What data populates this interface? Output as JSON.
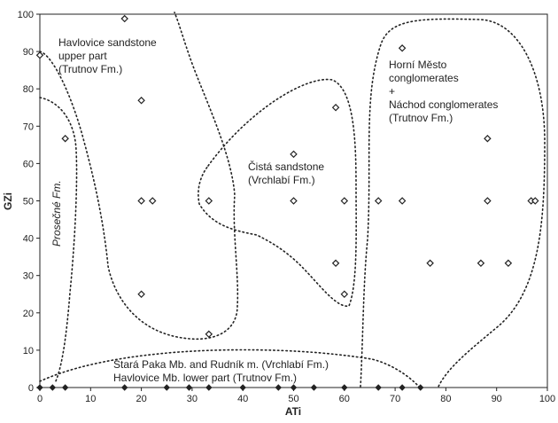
{
  "chart_data": {
    "type": "scatter",
    "xlabel": "ATi",
    "ylabel": "GZi",
    "xlim": [
      0,
      100
    ],
    "ylim": [
      0,
      100
    ],
    "xticks": [
      "0",
      "10",
      "20",
      "30",
      "40",
      "50",
      "60",
      "70",
      "80",
      "90",
      "100"
    ],
    "yticks": [
      "0",
      "10",
      "20",
      "30",
      "40",
      "50",
      "60",
      "70",
      "80",
      "90",
      "100"
    ],
    "grid": false,
    "points_open": [
      [
        0,
        89
      ],
      [
        16.7,
        98.8
      ],
      [
        5,
        66.7
      ],
      [
        20,
        76.9
      ],
      [
        20,
        50
      ],
      [
        22.2,
        50
      ],
      [
        20,
        25
      ],
      [
        33.3,
        50
      ],
      [
        33.3,
        14.3
      ],
      [
        50,
        62.5
      ],
      [
        50,
        50
      ],
      [
        58.3,
        75
      ],
      [
        60,
        50
      ],
      [
        58.3,
        33.3
      ],
      [
        60,
        25
      ],
      [
        66.7,
        50
      ],
      [
        71.4,
        90.9
      ],
      [
        71.4,
        50
      ],
      [
        88.2,
        66.7
      ],
      [
        88.2,
        50
      ],
      [
        96.8,
        50
      ],
      [
        97.6,
        50
      ],
      [
        76.9,
        33.3
      ],
      [
        86.9,
        33.3
      ],
      [
        92.3,
        33.3
      ]
    ],
    "points_baseline": [
      0,
      2.5,
      5,
      16.7,
      25,
      29.4,
      33.3,
      40,
      47,
      50,
      54,
      60,
      66.7,
      71.4,
      75
    ],
    "annotations": [
      {
        "lines": [
          "Havlovice sandstone",
          "upper part",
          "(Trutnov Fm.)"
        ]
      },
      {
        "lines": [
          "Horní Město",
          "conglomerates",
          "+",
          "Náchod conglomerates",
          "(Trutnov Fm.)"
        ]
      },
      {
        "lines": [
          "Čistá sandstone",
          "(Vrchlabí Fm.)"
        ]
      },
      {
        "lines": [
          "Prosečné Fm."
        ]
      },
      {
        "lines": [
          "Stará Paka Mb. and Rudník m. (Vrchlabí Fm.)",
          "Havlovice Mb. lower part (Trutnov Fm.)"
        ]
      }
    ],
    "regions": [
      "Havlovice sandstone upper part",
      "Prosečné Fm.",
      "Čistá sandstone",
      "Horní Město + Náchod conglomerates",
      "Stará Paka Mb. and Rudník m. / Havlovice Mb. lower part"
    ]
  }
}
